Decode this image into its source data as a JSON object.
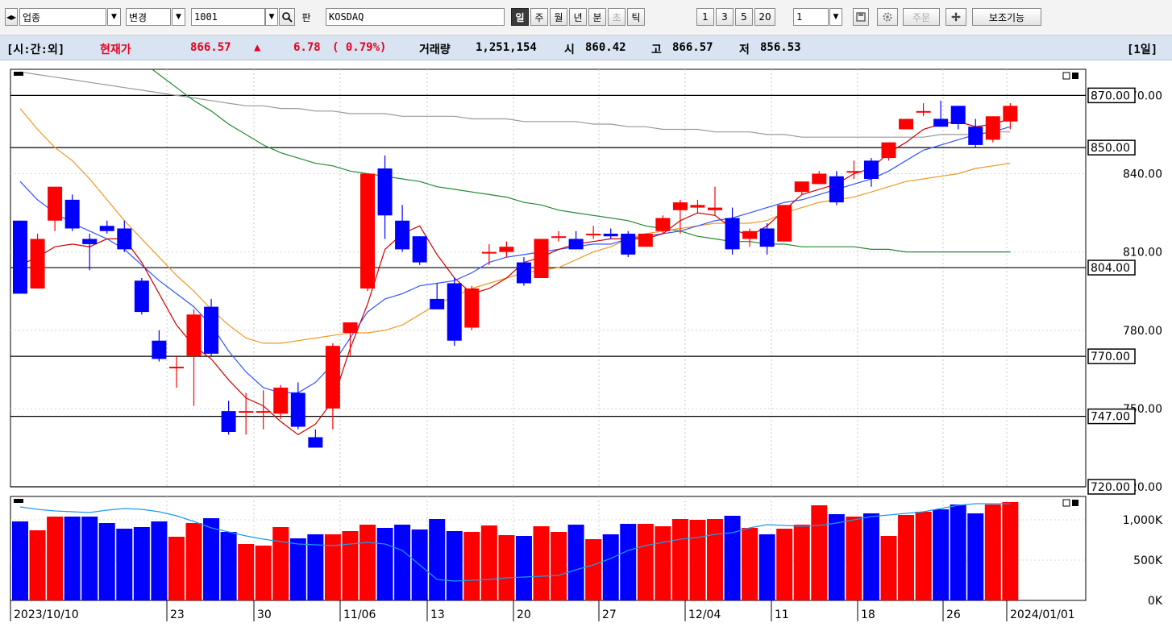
{
  "toolbar": {
    "nav_arrows": "◂▸",
    "category": "업종",
    "change": "변경",
    "code": "1001",
    "search_icon": "search-icon",
    "pan_label": "판",
    "market_name": "KOSDAQ",
    "period_buttons": [
      "일",
      "주",
      "월",
      "년",
      "분",
      "초",
      "틱"
    ],
    "active_period": "일",
    "multiplier_buttons": [
      "1",
      "3",
      "5",
      "20"
    ],
    "multiplier_value": "1",
    "order_label": "주문",
    "aux_label": "보조기능"
  },
  "info": {
    "mode": "[시:간:외]",
    "price_label": "현재가",
    "price": "866.57",
    "arrow": "▲",
    "change": "6.78",
    "change_pct": "( 0.79%)",
    "volume_label": "거래량",
    "volume": "1,251,154",
    "open_label": "시",
    "open": "860.42",
    "high_label": "고",
    "high": "866.57",
    "low_label": "저",
    "low": "856.53",
    "period_badge": "[1일]"
  },
  "colors": {
    "up": "#ff0000",
    "down": "#0000ff",
    "ma5": "#cc0000",
    "ma10": "#3355ff",
    "ma20": "#ee9922",
    "ma60": "#228833",
    "ma120": "#999999",
    "vol_ma": "#1e9be8"
  },
  "chart_data": {
    "type": "candlestick",
    "x_labels": [
      "2023/10/10",
      "23",
      "30",
      "11/06",
      "13",
      "20",
      "27",
      "12/04",
      "11",
      "18",
      "26",
      "2024/01/01"
    ],
    "y_ticks": [
      "870.00",
      "840.00",
      "810.00",
      "780.00",
      "750.00",
      "720.00"
    ],
    "price_levels": [
      "870.00",
      "850.00",
      "804.00",
      "770.00",
      "747.00",
      "720.00"
    ],
    "volume_ticks": [
      "1,000K",
      "500K",
      "0K"
    ],
    "candles": [
      [
        822,
        822,
        794,
        796
      ],
      [
        796,
        798,
        815,
        817
      ],
      [
        822,
        830,
        835,
        818
      ],
      [
        830,
        832,
        819,
        818
      ],
      [
        815,
        817,
        813,
        803
      ],
      [
        820,
        822,
        818,
        817
      ],
      [
        819,
        822,
        811,
        810
      ],
      [
        799,
        800,
        787,
        786
      ],
      [
        776,
        780,
        769,
        768
      ],
      [
        766,
        770,
        766,
        758
      ],
      [
        770,
        788,
        786,
        751
      ],
      [
        789,
        792,
        771,
        770
      ],
      [
        749,
        753,
        741,
        740
      ],
      [
        749,
        756,
        749,
        740
      ],
      [
        749,
        757,
        749,
        742
      ],
      [
        748,
        759,
        758,
        746
      ],
      [
        756,
        760,
        743,
        742
      ],
      [
        739,
        742,
        735,
        738
      ],
      [
        750,
        775,
        774,
        742
      ],
      [
        779,
        783,
        783,
        770
      ],
      [
        796,
        840,
        840,
        795
      ],
      [
        842,
        847,
        824,
        815
      ],
      [
        822,
        828,
        811,
        810
      ],
      [
        816,
        816,
        806,
        805
      ],
      [
        792,
        798,
        788,
        788
      ],
      [
        798,
        800,
        776,
        774
      ],
      [
        781,
        797,
        796,
        780
      ],
      [
        810,
        813,
        810,
        805
      ],
      [
        810,
        814,
        812,
        808
      ],
      [
        806,
        808,
        798,
        797
      ],
      [
        800,
        807,
        815,
        800
      ],
      [
        816,
        818,
        816,
        814
      ],
      [
        815,
        818,
        811,
        811
      ],
      [
        817,
        820,
        817,
        815
      ],
      [
        817,
        819,
        816,
        815
      ],
      [
        817,
        818,
        809,
        808
      ],
      [
        812,
        817,
        817,
        812
      ],
      [
        818,
        824,
        823,
        817
      ],
      [
        826,
        830,
        829,
        817
      ],
      [
        827,
        830,
        828,
        825
      ],
      [
        826,
        835,
        827,
        824
      ],
      [
        823,
        827,
        811,
        809
      ],
      [
        815,
        819,
        818,
        812
      ],
      [
        819,
        821,
        812,
        809
      ],
      [
        814,
        828,
        828,
        814
      ],
      [
        833,
        837,
        837,
        832
      ],
      [
        836,
        841,
        840,
        836
      ],
      [
        839,
        841,
        829,
        828
      ],
      [
        841,
        845,
        841,
        838
      ],
      [
        845,
        846,
        838,
        835
      ],
      [
        846,
        852,
        852,
        845
      ],
      [
        857,
        861,
        861,
        858
      ],
      [
        864,
        867,
        864,
        862
      ],
      [
        861,
        868,
        858,
        858
      ],
      [
        866,
        866,
        859,
        857
      ],
      [
        858,
        861,
        851,
        850
      ],
      [
        853,
        862,
        862,
        852
      ],
      [
        860,
        867,
        866,
        857
      ]
    ],
    "ma5": [
      805,
      808,
      812,
      813,
      812,
      815,
      815,
      806,
      794,
      782,
      774,
      769,
      761,
      754,
      751,
      745,
      740,
      744,
      753,
      773,
      790,
      811,
      817,
      820,
      809,
      800,
      794,
      796,
      800,
      806,
      808,
      811,
      813,
      814,
      815,
      815,
      815,
      817,
      822,
      825,
      824,
      819,
      816,
      820,
      826,
      832,
      834,
      836,
      840,
      842,
      848,
      852,
      857,
      859,
      860,
      858,
      859,
      861
    ],
    "ma10": [
      837,
      830,
      825,
      821,
      818,
      815,
      811,
      805,
      799,
      794,
      789,
      782,
      772,
      764,
      758,
      756,
      756,
      760,
      767,
      777,
      787,
      792,
      794,
      797,
      798,
      799,
      802,
      806,
      808,
      809,
      810,
      811,
      812,
      813,
      813,
      815,
      816,
      817,
      818,
      820,
      822,
      823,
      825,
      827,
      829,
      830,
      832,
      834,
      836,
      838,
      841,
      845,
      849,
      851,
      853,
      855,
      856,
      858
    ],
    "ma20": [
      865,
      857,
      850,
      845,
      838,
      830,
      822,
      815,
      808,
      801,
      795,
      788,
      782,
      777,
      775,
      775,
      776,
      777,
      778,
      779,
      779,
      780,
      782,
      786,
      790,
      793,
      796,
      798,
      800,
      802,
      803,
      804,
      807,
      810,
      812,
      815,
      817,
      818,
      819,
      820,
      821,
      821,
      821,
      822,
      825,
      827,
      829,
      830,
      831,
      833,
      835,
      837,
      838,
      839,
      840,
      842,
      843,
      844
    ],
    "ma60": [
      940,
      930,
      920,
      910,
      902,
      895,
      889,
      883,
      878,
      873,
      868,
      864,
      859,
      855,
      851,
      848,
      846,
      844,
      843,
      841,
      840,
      839,
      838,
      837,
      835,
      834,
      833,
      832,
      831,
      829,
      828,
      826,
      825,
      824,
      823,
      822,
      820,
      819,
      818,
      816,
      815,
      814,
      814,
      813,
      813,
      812,
      812,
      812,
      812,
      811,
      811,
      810,
      810,
      810,
      810,
      810,
      810,
      810
    ],
    "ma120": [
      879,
      878,
      877,
      876,
      875,
      874,
      873,
      872,
      871,
      870,
      869,
      868,
      867,
      866,
      866,
      865,
      865,
      864,
      864,
      863,
      863,
      863,
      862,
      862,
      862,
      862,
      861,
      861,
      861,
      860,
      860,
      860,
      860,
      859,
      859,
      858,
      858,
      857,
      857,
      857,
      856,
      856,
      856,
      855,
      855,
      854,
      854,
      854,
      854,
      854,
      854,
      854,
      854,
      855,
      855,
      855,
      856,
      856
    ],
    "volume": [
      980,
      870,
      1040,
      1040,
      1040,
      960,
      890,
      910,
      980,
      790,
      960,
      1020,
      850,
      700,
      680,
      910,
      770,
      820,
      820,
      860,
      940,
      900,
      940,
      880,
      1010,
      860,
      850,
      930,
      810,
      800,
      920,
      850,
      940,
      760,
      820,
      950,
      950,
      920,
      1010,
      1000,
      1010,
      1050,
      900,
      820,
      890,
      940,
      1180,
      1070,
      1040,
      1080,
      800,
      1060,
      1100,
      1130,
      1190,
      1080,
      1190,
      1220
    ],
    "volume_ma": [
      1160,
      1130,
      1110,
      1100,
      1090,
      1120,
      1140,
      1130,
      1100,
      1050,
      980,
      900,
      850,
      800,
      760,
      730,
      700,
      690,
      680,
      700,
      720,
      700,
      620,
      440,
      260,
      240,
      250,
      260,
      280,
      290,
      300,
      310,
      380,
      440,
      520,
      620,
      680,
      720,
      760,
      780,
      820,
      840,
      900,
      940,
      930,
      920,
      930,
      960,
      1000,
      1040,
      1060,
      1080,
      1100,
      1140,
      1180,
      1200,
      1200,
      1200
    ],
    "vol_max": 1250,
    "ylim": [
      720,
      880
    ],
    "ylabel": "",
    "xlabel": ""
  }
}
